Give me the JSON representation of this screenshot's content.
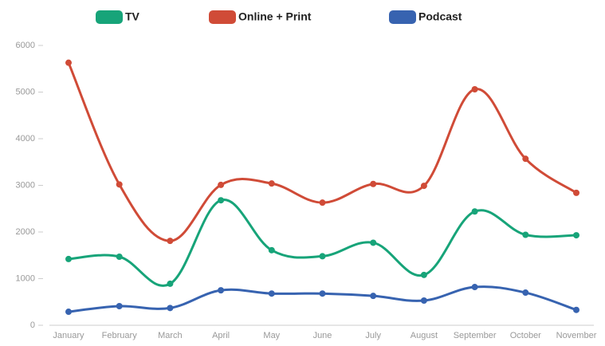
{
  "chart_data": {
    "type": "line",
    "categories": [
      "January",
      "February",
      "March",
      "April",
      "May",
      "June",
      "July",
      "August",
      "September",
      "October",
      "November"
    ],
    "series": [
      {
        "name": "TV",
        "color": "#17a479",
        "values": [
          1420,
          1470,
          890,
          2680,
          1610,
          1480,
          1770,
          1080,
          2440,
          1940,
          1930
        ]
      },
      {
        "name": "Online + Print",
        "color": "#d04b37",
        "values": [
          5630,
          3020,
          1810,
          3010,
          3040,
          2630,
          3030,
          2990,
          5060,
          3570,
          2840
        ]
      },
      {
        "name": "Podcast",
        "color": "#3763b0",
        "values": [
          290,
          410,
          370,
          750,
          680,
          680,
          630,
          530,
          820,
          700,
          330
        ]
      }
    ],
    "ylim": [
      0,
      6000
    ],
    "yticks": [
      0,
      1000,
      2000,
      3000,
      4000,
      5000,
      6000
    ],
    "grid": false,
    "legend": "top"
  }
}
